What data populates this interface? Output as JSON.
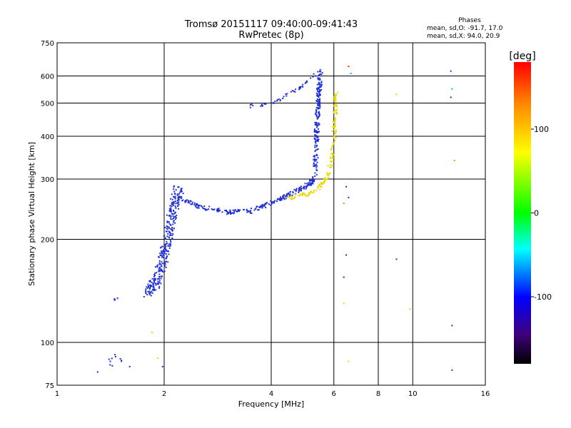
{
  "header": {
    "title_line1": "Tromsø 20151117 09:40:00-09:41:43",
    "title_line2": "RwPretec (8p)"
  },
  "phases_box": {
    "heading": "Phases",
    "line_o": "mean, sd,O: -91.7, 17.0",
    "line_x": "mean, sd,X:  94.0, 20.9"
  },
  "chart_data": {
    "type": "scatter",
    "xlabel": "Frequency [MHz]",
    "ylabel": "Stationary phase Virtual Height [km]",
    "x_scale": "log",
    "y_scale": "log",
    "xlim": [
      1,
      16
    ],
    "ylim": [
      75,
      750
    ],
    "x_ticks": [
      1,
      2,
      4,
      6,
      8,
      10,
      16
    ],
    "y_ticks": [
      75,
      100,
      200,
      300,
      400,
      500,
      600,
      750
    ],
    "grid_x": [
      2,
      4,
      6,
      8,
      10
    ],
    "grid_y": [
      100,
      200,
      300,
      400,
      500,
      600
    ],
    "grid": true,
    "colorbar": {
      "label": "[deg]",
      "range": [
        -180,
        180
      ],
      "ticks": [
        100,
        0,
        -100
      ],
      "colors": [
        "#ff0000",
        "#ff8800",
        "#ffff00",
        "#00ff00",
        "#00ffff",
        "#0000ff",
        "#400080",
        "#000000"
      ]
    },
    "series": [
      {
        "color": "#1f2fd6",
        "segments": [
          {
            "x": [
              1.8,
              1.9,
              1.95,
              2.0,
              2.05,
              2.1,
              2.15,
              2.2
            ],
            "y": [
              140,
              150,
              165,
              180,
              200,
              230,
              260,
              280
            ],
            "spread": 0.06,
            "count": 320
          },
          {
            "x": [
              2.2,
              2.5,
              3.0,
              3.5,
              4.0,
              4.5,
              5.0,
              5.3
            ],
            "y": [
              265,
              250,
              240,
              242,
              255,
              270,
              285,
              300
            ],
            "spread": 0.025,
            "count": 260
          },
          {
            "x": [
              5.3,
              5.35,
              5.4,
              5.45,
              5.5
            ],
            "y": [
              300,
              380,
              460,
              540,
              620
            ],
            "spread": 0.03,
            "count": 200
          },
          {
            "x": [
              3.5,
              4.0,
              4.5,
              5.0,
              5.4
            ],
            "y": [
              490,
              500,
              530,
              570,
              620
            ],
            "spread": 0.02,
            "count": 50
          },
          {
            "x": [
              1.4,
              1.45,
              1.5
            ],
            "y": [
              85,
              92,
              88
            ],
            "spread": 0.03,
            "count": 10
          },
          {
            "x": [
              1.45,
              1.48
            ],
            "y": [
              133,
              135
            ],
            "spread": 0.01,
            "count": 4
          }
        ]
      },
      {
        "color": "#e8d800",
        "segments": [
          {
            "x": [
              4.5,
              5.0,
              5.5,
              5.8,
              6.0,
              6.05,
              6.1
            ],
            "y": [
              265,
              270,
              285,
              310,
              380,
              460,
              540
            ],
            "spread": 0.025,
            "count": 170
          }
        ]
      }
    ],
    "stray_points": [
      {
        "x": 6.6,
        "y": 640,
        "color": "#ff2200"
      },
      {
        "x": 6.7,
        "y": 610,
        "color": "#00aaff"
      },
      {
        "x": 6.5,
        "y": 285,
        "color": "#1f2fd6"
      },
      {
        "x": 6.6,
        "y": 265,
        "color": "#1f2fd6"
      },
      {
        "x": 6.4,
        "y": 255,
        "color": "#ff8800"
      },
      {
        "x": 6.5,
        "y": 180,
        "color": "#1f2fd6"
      },
      {
        "x": 6.4,
        "y": 155,
        "color": "#1f2fd6"
      },
      {
        "x": 6.4,
        "y": 130,
        "color": "#ffcc00"
      },
      {
        "x": 6.6,
        "y": 88,
        "color": "#ffcc00"
      },
      {
        "x": 9.0,
        "y": 530,
        "color": "#ffcc00"
      },
      {
        "x": 9.0,
        "y": 175,
        "color": "#1f2fd6"
      },
      {
        "x": 9.8,
        "y": 125,
        "color": "#ffcc00"
      },
      {
        "x": 12.8,
        "y": 620,
        "color": "#1f2fd6"
      },
      {
        "x": 12.9,
        "y": 550,
        "color": "#00aaff"
      },
      {
        "x": 12.8,
        "y": 520,
        "color": "#1f2fd6"
      },
      {
        "x": 13.1,
        "y": 340,
        "color": "#ff8800"
      },
      {
        "x": 12.9,
        "y": 112,
        "color": "#1f2fd6"
      },
      {
        "x": 12.9,
        "y": 83,
        "color": "#1f2fd6"
      },
      {
        "x": 1.3,
        "y": 82,
        "color": "#1f2fd6"
      },
      {
        "x": 1.6,
        "y": 85,
        "color": "#1f2fd6"
      },
      {
        "x": 1.98,
        "y": 85,
        "color": "#1f2fd6"
      },
      {
        "x": 1.92,
        "y": 90,
        "color": "#ffcc00"
      },
      {
        "x": 1.85,
        "y": 107,
        "color": "#ffcc00"
      }
    ]
  }
}
